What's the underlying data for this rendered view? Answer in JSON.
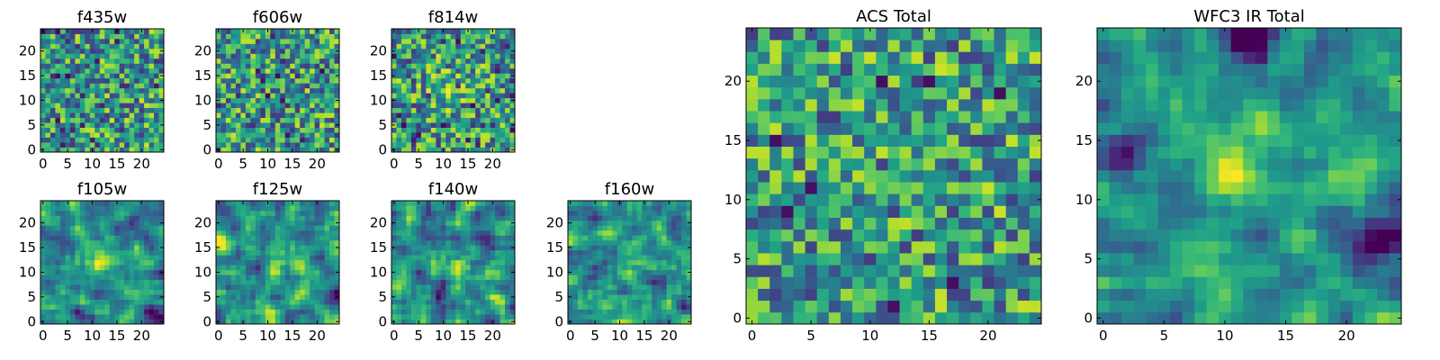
{
  "figure": {
    "colormap": "viridis",
    "text_color": "#000000",
    "background": "#ffffff"
  },
  "chart_data": [
    {
      "type": "heatmap",
      "title": "f435w",
      "xlabel": "",
      "ylabel": "",
      "shape": [
        25,
        25
      ],
      "xlim": [
        0,
        24
      ],
      "ylim": [
        0,
        24
      ],
      "xticks": [
        0,
        5,
        10,
        15,
        20
      ],
      "yticks": [
        0,
        5,
        10,
        15,
        20
      ],
      "pattern": "noise with scattered dark pixels",
      "grid": false
    },
    {
      "type": "heatmap",
      "title": "f606w",
      "xlabel": "",
      "ylabel": "",
      "shape": [
        25,
        25
      ],
      "xlim": [
        0,
        24
      ],
      "ylim": [
        0,
        24
      ],
      "xticks": [
        0,
        5,
        10,
        15,
        20
      ],
      "yticks": [
        0,
        5,
        10,
        15,
        20
      ],
      "pattern": "noise with scattered dark pixels",
      "grid": false
    },
    {
      "type": "heatmap",
      "title": "f814w",
      "xlabel": "",
      "ylabel": "",
      "shape": [
        25,
        25
      ],
      "xlim": [
        0,
        24
      ],
      "ylim": [
        0,
        24
      ],
      "xticks": [
        0,
        5,
        10,
        15,
        20
      ],
      "yticks": [
        0,
        5,
        10,
        15,
        20
      ],
      "pattern": "noise with faint central source",
      "grid": false
    },
    {
      "type": "heatmap",
      "title": "f105w",
      "xlabel": "",
      "ylabel": "",
      "shape": [
        25,
        25
      ],
      "xlim": [
        0,
        24
      ],
      "ylim": [
        0,
        24
      ],
      "xticks": [
        0,
        5,
        10,
        15,
        20
      ],
      "yticks": [
        0,
        5,
        10,
        15,
        20
      ],
      "pattern": "bright source near (12,12)",
      "grid": false
    },
    {
      "type": "heatmap",
      "title": "f125w",
      "xlabel": "",
      "ylabel": "",
      "shape": [
        25,
        25
      ],
      "xlim": [
        0,
        24
      ],
      "ylim": [
        0,
        24
      ],
      "xticks": [
        0,
        5,
        10,
        15,
        20
      ],
      "yticks": [
        0,
        5,
        10,
        15,
        20
      ],
      "pattern": "bright source near (12,12)",
      "grid": false
    },
    {
      "type": "heatmap",
      "title": "f140w",
      "xlabel": "",
      "ylabel": "",
      "shape": [
        25,
        25
      ],
      "xlim": [
        0,
        24
      ],
      "ylim": [
        0,
        24
      ],
      "xticks": [
        0,
        5,
        10,
        15,
        20
      ],
      "yticks": [
        0,
        5,
        10,
        15,
        20
      ],
      "pattern": "bright source near (11,11)",
      "grid": false
    },
    {
      "type": "heatmap",
      "title": "f160w",
      "xlabel": "",
      "ylabel": "",
      "shape": [
        25,
        25
      ],
      "xlim": [
        0,
        24
      ],
      "ylim": [
        0,
        24
      ],
      "xticks": [
        0,
        5,
        10,
        15,
        20
      ],
      "yticks": [
        0,
        5,
        10,
        15,
        20
      ],
      "pattern": "bright source near (12,12)",
      "grid": false
    },
    {
      "type": "heatmap",
      "title": "ACS Total",
      "xlabel": "",
      "ylabel": "",
      "shape": [
        25,
        25
      ],
      "xlim": [
        0,
        24
      ],
      "ylim": [
        0,
        24
      ],
      "xticks": [
        0,
        5,
        10,
        15,
        20
      ],
      "yticks": [
        0,
        5,
        10,
        15,
        20
      ],
      "pattern": "noise, dark pixels at (11,20),(15,20),(21,19),(5,11),(3,9),(12,1)",
      "grid": false
    },
    {
      "type": "heatmap",
      "title": "WFC3 IR Total",
      "xlabel": "",
      "ylabel": "",
      "shape": [
        25,
        25
      ],
      "xlim": [
        0,
        24
      ],
      "ylim": [
        0,
        24
      ],
      "xticks": [
        0,
        5,
        10,
        15,
        20
      ],
      "yticks": [
        0,
        5,
        10,
        15,
        20
      ],
      "pattern": "bright source at (11-12,11-13); dark cluster top (10-14,23-24) and right (21-24,5-7)",
      "grid": false
    }
  ]
}
